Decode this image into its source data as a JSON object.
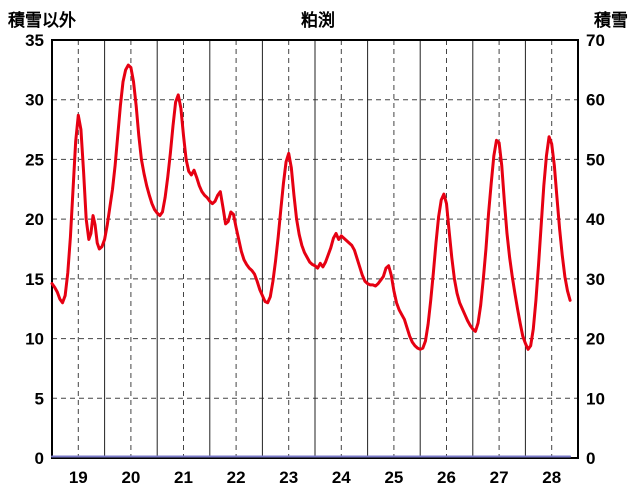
{
  "header": {
    "left_axis_title": "積雪以外",
    "station_name": "粕渕",
    "right_axis_title": "積雪"
  },
  "chart_data": {
    "type": "line",
    "title": "粕渕",
    "grid": true,
    "legend_position": "none",
    "x_axis": {
      "range": [
        19,
        29
      ],
      "tick_labels": [
        "19",
        "20",
        "21",
        "22",
        "23",
        "24",
        "25",
        "26",
        "27",
        "28"
      ],
      "tick_positions": [
        19.5,
        20.5,
        21.5,
        22.5,
        23.5,
        24.5,
        25.5,
        26.5,
        27.5,
        28.5
      ],
      "solid_gridlines": [
        20,
        21,
        22,
        23,
        24,
        25,
        26,
        27,
        28
      ],
      "dashed_gridlines": [
        19.5,
        20.5,
        21.5,
        22.5,
        23.5,
        24.5,
        25.5,
        26.5,
        27.5,
        28.5
      ]
    },
    "y_left": {
      "label": "積雪以外",
      "range": [
        0,
        35
      ],
      "ticks": [
        0,
        5,
        10,
        15,
        20,
        25,
        30,
        35
      ],
      "gridlines": [
        5,
        10,
        15,
        20,
        25,
        30
      ]
    },
    "y_right": {
      "label": "積雪",
      "range": [
        0,
        70
      ],
      "ticks": [
        0,
        10,
        20,
        30,
        40,
        50,
        60,
        70
      ]
    },
    "series": [
      {
        "name": "積雪",
        "axis": "right",
        "color": "#7a7ac8",
        "width": 2,
        "points": [
          [
            19.0,
            0
          ],
          [
            28.85,
            0
          ]
        ]
      },
      {
        "name": "積雪以外",
        "axis": "left",
        "color": "#e60012",
        "width": 3,
        "points": [
          [
            19.0,
            14.6
          ],
          [
            19.05,
            14.3
          ],
          [
            19.1,
            13.9
          ],
          [
            19.15,
            13.3
          ],
          [
            19.2,
            13.0
          ],
          [
            19.25,
            13.6
          ],
          [
            19.3,
            15.5
          ],
          [
            19.35,
            18.5
          ],
          [
            19.4,
            22.5
          ],
          [
            19.45,
            26.5
          ],
          [
            19.5,
            28.7
          ],
          [
            19.55,
            27.5
          ],
          [
            19.6,
            24.0
          ],
          [
            19.65,
            20.0
          ],
          [
            19.7,
            18.3
          ],
          [
            19.74,
            18.8
          ],
          [
            19.78,
            20.3
          ],
          [
            19.82,
            19.5
          ],
          [
            19.86,
            18.0
          ],
          [
            19.9,
            17.5
          ],
          [
            19.95,
            17.7
          ],
          [
            20.0,
            18.3
          ],
          [
            20.05,
            19.5
          ],
          [
            20.1,
            21.0
          ],
          [
            20.15,
            22.5
          ],
          [
            20.2,
            24.5
          ],
          [
            20.25,
            27.0
          ],
          [
            20.3,
            29.5
          ],
          [
            20.35,
            31.5
          ],
          [
            20.4,
            32.5
          ],
          [
            20.45,
            32.9
          ],
          [
            20.5,
            32.7
          ],
          [
            20.55,
            31.5
          ],
          [
            20.6,
            29.5
          ],
          [
            20.65,
            27.0
          ],
          [
            20.7,
            25.0
          ],
          [
            20.75,
            23.8
          ],
          [
            20.8,
            22.8
          ],
          [
            20.85,
            22.0
          ],
          [
            20.9,
            21.3
          ],
          [
            20.95,
            20.8
          ],
          [
            21.0,
            20.5
          ],
          [
            21.05,
            20.3
          ],
          [
            21.1,
            20.6
          ],
          [
            21.15,
            21.8
          ],
          [
            21.2,
            23.5
          ],
          [
            21.25,
            25.5
          ],
          [
            21.3,
            27.8
          ],
          [
            21.35,
            29.8
          ],
          [
            21.4,
            30.4
          ],
          [
            21.45,
            29.3
          ],
          [
            21.5,
            27.0
          ],
          [
            21.55,
            25.0
          ],
          [
            21.6,
            24.0
          ],
          [
            21.65,
            23.7
          ],
          [
            21.7,
            24.1
          ],
          [
            21.75,
            23.5
          ],
          [
            21.8,
            22.8
          ],
          [
            21.85,
            22.3
          ],
          [
            21.9,
            22.0
          ],
          [
            21.95,
            21.8
          ],
          [
            22.0,
            21.5
          ],
          [
            22.05,
            21.3
          ],
          [
            22.1,
            21.5
          ],
          [
            22.15,
            22.0
          ],
          [
            22.2,
            22.3
          ],
          [
            22.25,
            21.0
          ],
          [
            22.3,
            19.6
          ],
          [
            22.35,
            19.8
          ],
          [
            22.4,
            20.6
          ],
          [
            22.45,
            20.4
          ],
          [
            22.5,
            19.3
          ],
          [
            22.55,
            18.3
          ],
          [
            22.6,
            17.3
          ],
          [
            22.65,
            16.6
          ],
          [
            22.7,
            16.2
          ],
          [
            22.75,
            15.9
          ],
          [
            22.8,
            15.7
          ],
          [
            22.85,
            15.4
          ],
          [
            22.9,
            14.8
          ],
          [
            22.95,
            14.1
          ],
          [
            23.0,
            13.6
          ],
          [
            23.05,
            13.1
          ],
          [
            23.1,
            13.0
          ],
          [
            23.15,
            13.5
          ],
          [
            23.2,
            14.8
          ],
          [
            23.25,
            16.5
          ],
          [
            23.3,
            18.5
          ],
          [
            23.35,
            20.8
          ],
          [
            23.4,
            23.0
          ],
          [
            23.45,
            24.8
          ],
          [
            23.5,
            25.5
          ],
          [
            23.55,
            24.3
          ],
          [
            23.6,
            22.0
          ],
          [
            23.65,
            20.0
          ],
          [
            23.7,
            18.7
          ],
          [
            23.75,
            17.8
          ],
          [
            23.8,
            17.2
          ],
          [
            23.85,
            16.8
          ],
          [
            23.9,
            16.4
          ],
          [
            23.95,
            16.2
          ],
          [
            24.0,
            16.1
          ],
          [
            24.05,
            15.9
          ],
          [
            24.1,
            16.3
          ],
          [
            24.15,
            16.0
          ],
          [
            24.2,
            16.4
          ],
          [
            24.25,
            17.0
          ],
          [
            24.3,
            17.6
          ],
          [
            24.35,
            18.4
          ],
          [
            24.4,
            18.8
          ],
          [
            24.45,
            18.3
          ],
          [
            24.5,
            18.6
          ],
          [
            24.55,
            18.4
          ],
          [
            24.6,
            18.2
          ],
          [
            24.65,
            18.0
          ],
          [
            24.7,
            17.8
          ],
          [
            24.75,
            17.4
          ],
          [
            24.8,
            16.7
          ],
          [
            24.85,
            16.0
          ],
          [
            24.9,
            15.3
          ],
          [
            24.95,
            14.8
          ],
          [
            25.0,
            14.6
          ],
          [
            25.05,
            14.5
          ],
          [
            25.1,
            14.5
          ],
          [
            25.15,
            14.4
          ],
          [
            25.2,
            14.6
          ],
          [
            25.25,
            14.9
          ],
          [
            25.3,
            15.2
          ],
          [
            25.35,
            15.9
          ],
          [
            25.4,
            16.1
          ],
          [
            25.45,
            15.3
          ],
          [
            25.5,
            14.0
          ],
          [
            25.55,
            13.0
          ],
          [
            25.6,
            12.4
          ],
          [
            25.65,
            12.0
          ],
          [
            25.7,
            11.6
          ],
          [
            25.75,
            10.9
          ],
          [
            25.8,
            10.2
          ],
          [
            25.85,
            9.7
          ],
          [
            25.9,
            9.4
          ],
          [
            25.95,
            9.2
          ],
          [
            26.0,
            9.1
          ],
          [
            26.05,
            9.2
          ],
          [
            26.1,
            9.8
          ],
          [
            26.15,
            11.2
          ],
          [
            26.2,
            13.2
          ],
          [
            26.25,
            15.5
          ],
          [
            26.3,
            18.0
          ],
          [
            26.35,
            20.2
          ],
          [
            26.4,
            21.6
          ],
          [
            26.45,
            22.1
          ],
          [
            26.5,
            21.3
          ],
          [
            26.55,
            19.0
          ],
          [
            26.6,
            16.8
          ],
          [
            26.65,
            15.0
          ],
          [
            26.7,
            13.8
          ],
          [
            26.75,
            13.0
          ],
          [
            26.8,
            12.5
          ],
          [
            26.85,
            12.0
          ],
          [
            26.9,
            11.5
          ],
          [
            26.95,
            11.1
          ],
          [
            27.0,
            10.8
          ],
          [
            27.05,
            10.6
          ],
          [
            27.1,
            11.3
          ],
          [
            27.15,
            12.8
          ],
          [
            27.2,
            15.0
          ],
          [
            27.25,
            17.5
          ],
          [
            27.3,
            20.5
          ],
          [
            27.35,
            23.0
          ],
          [
            27.4,
            25.3
          ],
          [
            27.45,
            26.6
          ],
          [
            27.5,
            26.4
          ],
          [
            27.55,
            24.5
          ],
          [
            27.6,
            21.5
          ],
          [
            27.65,
            18.8
          ],
          [
            27.7,
            16.8
          ],
          [
            27.75,
            15.2
          ],
          [
            27.8,
            13.8
          ],
          [
            27.85,
            12.5
          ],
          [
            27.9,
            11.3
          ],
          [
            27.95,
            10.2
          ],
          [
            28.0,
            9.6
          ],
          [
            28.05,
            9.1
          ],
          [
            28.1,
            9.4
          ],
          [
            28.15,
            10.8
          ],
          [
            28.2,
            13.2
          ],
          [
            28.25,
            16.2
          ],
          [
            28.3,
            19.5
          ],
          [
            28.35,
            22.8
          ],
          [
            28.4,
            25.3
          ],
          [
            28.45,
            26.9
          ],
          [
            28.5,
            26.3
          ],
          [
            28.55,
            24.5
          ],
          [
            28.6,
            21.8
          ],
          [
            28.65,
            19.2
          ],
          [
            28.7,
            17.0
          ],
          [
            28.75,
            15.2
          ],
          [
            28.8,
            14.0
          ],
          [
            28.85,
            13.2
          ]
        ]
      }
    ],
    "colors": {
      "main_series": "#e60012",
      "snow_series": "#7a7ac8",
      "border": "#000000",
      "gridline": "#444444"
    }
  }
}
